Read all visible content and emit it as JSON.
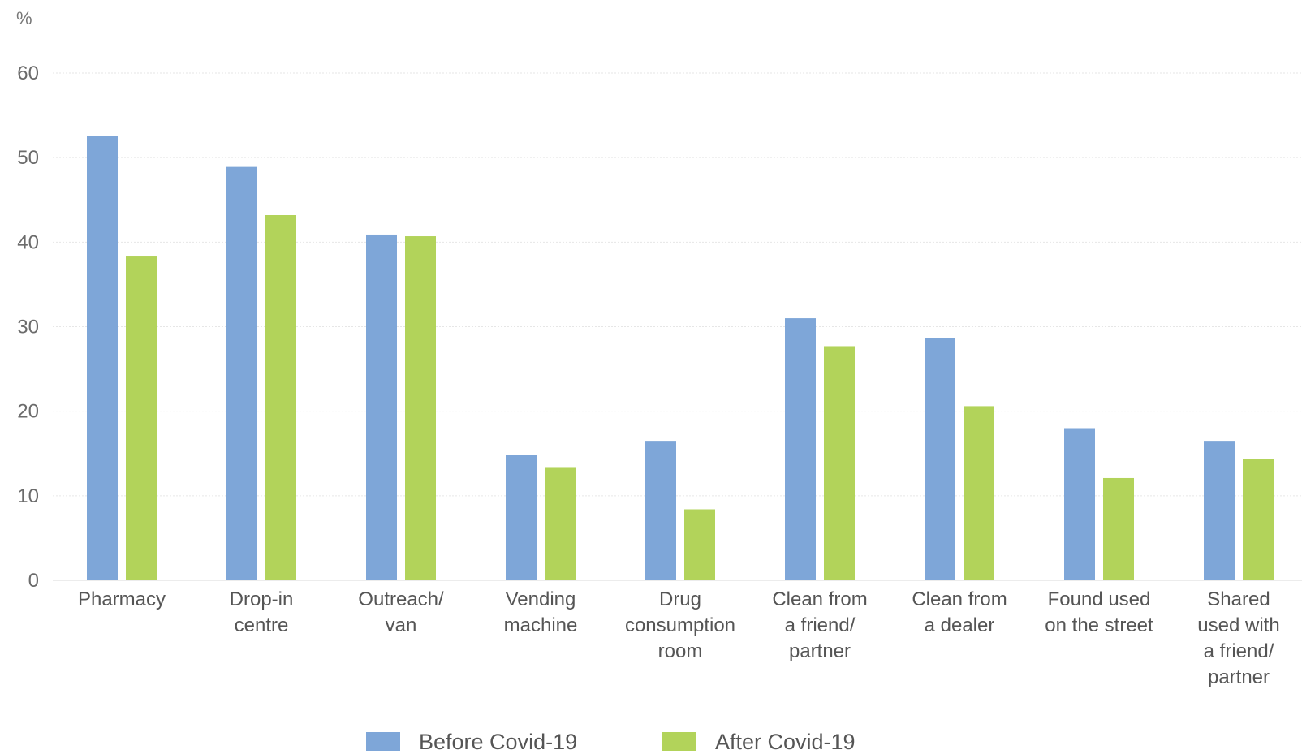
{
  "chart_data": {
    "type": "bar",
    "unit_label": "%",
    "ylim": [
      0,
      60
    ],
    "yticks": [
      0,
      10,
      20,
      30,
      40,
      50,
      60
    ],
    "grid": true,
    "legend_position": "bottom-center",
    "categories": [
      [
        "Pharmacy"
      ],
      [
        "Drop-in",
        "centre"
      ],
      [
        "Outreach/",
        "van"
      ],
      [
        "Vending",
        "machine"
      ],
      [
        "Drug",
        "consumption",
        "room"
      ],
      [
        "Clean from",
        "a friend/",
        "partner"
      ],
      [
        "Clean from",
        "a dealer"
      ],
      [
        "Found used",
        "on the street"
      ],
      [
        "Shared",
        "used with",
        "a friend/",
        "partner"
      ]
    ],
    "series": [
      {
        "name": "Before Covid-19",
        "color": "#7ea6d8",
        "values": [
          52.6,
          48.9,
          40.9,
          14.8,
          16.5,
          31.0,
          28.7,
          18.0,
          16.5
        ]
      },
      {
        "name": "After Covid-19",
        "color": "#b2d35a",
        "values": [
          38.3,
          43.2,
          40.7,
          13.3,
          8.4,
          27.7,
          20.6,
          12.1,
          14.4
        ]
      }
    ]
  }
}
